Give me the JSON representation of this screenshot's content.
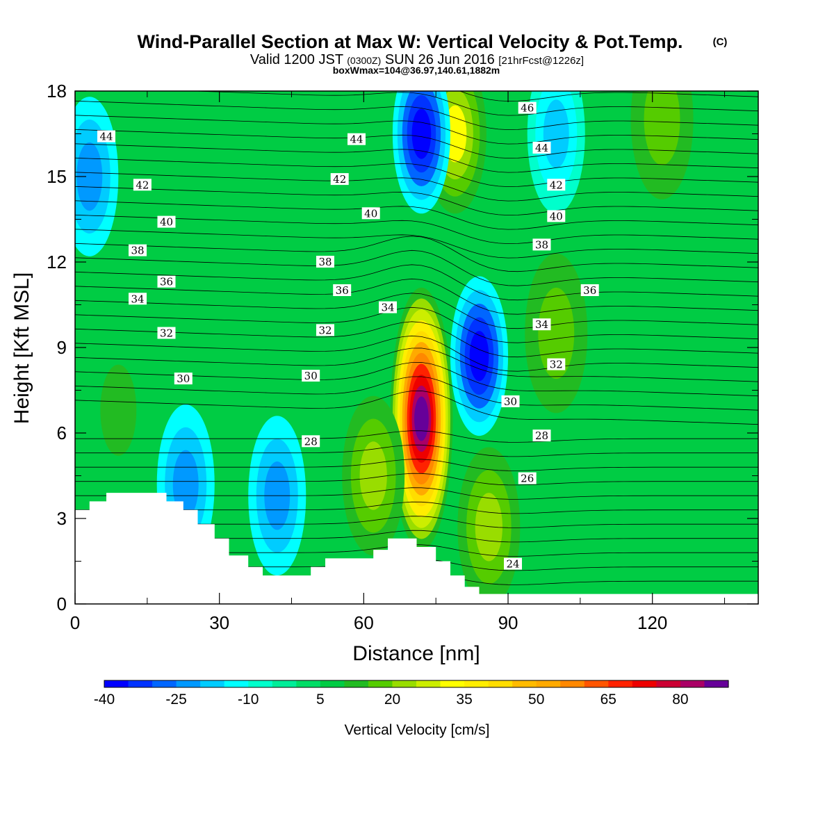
{
  "header": {
    "title_main": "Wind-Parallel Section at Max W: Vertical Velocity & Pot.Temp.",
    "title_mark": "(C)",
    "valid_a": "Valid 1200 JST",
    "valid_b": "(0300Z)",
    "valid_c": "SUN 26 Jun 2016",
    "valid_d": "[21hrFcst@1226z]",
    "box_info": "boxWmax=104@36.97,140.61,1882m"
  },
  "chart_data": {
    "type": "heatmap",
    "xlabel": "Distance [nm]",
    "ylabel": "Height [Kft MSL]",
    "xlim": [
      0,
      142
    ],
    "ylim": [
      0,
      18
    ],
    "xticks": [
      0,
      30,
      60,
      90,
      120
    ],
    "yticks": [
      0,
      3,
      6,
      9,
      12,
      15,
      18
    ],
    "colorbar": {
      "label": "Vertical Velocity [cm/s]",
      "tick_labels": [
        "-40",
        "-25",
        "-10",
        "5",
        "20",
        "35",
        "50",
        "65",
        "80"
      ],
      "colors": [
        "#0000ff",
        "#0033ff",
        "#0066ff",
        "#0099ff",
        "#00ccff",
        "#00ffff",
        "#00ffcc",
        "#00ee99",
        "#00dd66",
        "#00cc44",
        "#22bb22",
        "#55cc00",
        "#99dd00",
        "#ccee00",
        "#ffff00",
        "#ffee00",
        "#ffdd00",
        "#ffbb00",
        "#ffaa00",
        "#ff8800",
        "#ff5500",
        "#ff2200",
        "#ee0000",
        "#cc0033",
        "#aa0066",
        "#660099"
      ]
    },
    "field": "vertical velocity (cm/s)",
    "max_updraft": {
      "value": 104,
      "x": 72,
      "y": 6.0
    },
    "updrafts": [
      {
        "x": 72,
        "y": 6.5,
        "value": 90
      },
      {
        "x": 62,
        "y": 4.5,
        "value": 22
      },
      {
        "x": 86,
        "y": 2.7,
        "value": 22
      },
      {
        "x": 79,
        "y": 16.5,
        "value": 30
      },
      {
        "x": 100,
        "y": 9.5,
        "value": 18
      },
      {
        "x": 122,
        "y": 17.0,
        "value": 16
      },
      {
        "x": 9,
        "y": 6.8,
        "value": 10
      }
    ],
    "downdrafts": [
      {
        "x": 84,
        "y": 8.7,
        "value": -40
      },
      {
        "x": 72,
        "y": 16.5,
        "value": -40
      },
      {
        "x": 42,
        "y": 3.8,
        "value": -25
      },
      {
        "x": 23,
        "y": 4.2,
        "value": -22
      },
      {
        "x": 3,
        "y": 15.0,
        "value": -22
      },
      {
        "x": 100,
        "y": 16.5,
        "value": -20
      }
    ],
    "terrain": [
      [
        0,
        3.3
      ],
      [
        3,
        3.3
      ],
      [
        3,
        3.6
      ],
      [
        6.5,
        3.6
      ],
      [
        6.5,
        3.9
      ],
      [
        19,
        3.9
      ],
      [
        19,
        3.6
      ],
      [
        22.5,
        3.6
      ],
      [
        22.5,
        3.3
      ],
      [
        25.5,
        3.3
      ],
      [
        25.5,
        2.8
      ],
      [
        29,
        2.8
      ],
      [
        29,
        2.3
      ],
      [
        32,
        2.3
      ],
      [
        32,
        1.7
      ],
      [
        36,
        1.7
      ],
      [
        36,
        1.3
      ],
      [
        39,
        1.3
      ],
      [
        39,
        1.0
      ],
      [
        49,
        1.0
      ],
      [
        49,
        1.3
      ],
      [
        52,
        1.3
      ],
      [
        52,
        1.6
      ],
      [
        62,
        1.6
      ],
      [
        62,
        1.9
      ],
      [
        65,
        1.9
      ],
      [
        65,
        2.3
      ],
      [
        71,
        2.3
      ],
      [
        71,
        2.0
      ],
      [
        75,
        2.0
      ],
      [
        75,
        1.5
      ],
      [
        78,
        1.5
      ],
      [
        78,
        1.0
      ],
      [
        81,
        1.0
      ],
      [
        81,
        0.6
      ],
      [
        84,
        0.6
      ],
      [
        84,
        0.35
      ],
      [
        142,
        0.35
      ]
    ],
    "theta_contour_labels": [
      {
        "value": "44",
        "x": 6.5,
        "y": 16.4
      },
      {
        "value": "44",
        "x": 58.5,
        "y": 16.3
      },
      {
        "value": "44",
        "x": 97,
        "y": 16.0
      },
      {
        "value": "46",
        "x": 94,
        "y": 17.4
      },
      {
        "value": "42",
        "x": 14,
        "y": 14.7
      },
      {
        "value": "42",
        "x": 55,
        "y": 14.9
      },
      {
        "value": "42",
        "x": 100,
        "y": 14.7
      },
      {
        "value": "40",
        "x": 19,
        "y": 13.4
      },
      {
        "value": "40",
        "x": 61.5,
        "y": 13.7
      },
      {
        "value": "40",
        "x": 100,
        "y": 13.6
      },
      {
        "value": "38",
        "x": 13,
        "y": 12.4
      },
      {
        "value": "38",
        "x": 52,
        "y": 12.0
      },
      {
        "value": "38",
        "x": 97,
        "y": 12.6
      },
      {
        "value": "36",
        "x": 19,
        "y": 11.3
      },
      {
        "value": "36",
        "x": 55.5,
        "y": 11.0
      },
      {
        "value": "36",
        "x": 107,
        "y": 11.0
      },
      {
        "value": "34",
        "x": 13,
        "y": 10.7
      },
      {
        "value": "34",
        "x": 65,
        "y": 10.4
      },
      {
        "value": "34",
        "x": 97,
        "y": 9.8
      },
      {
        "value": "32",
        "x": 19,
        "y": 9.5
      },
      {
        "value": "32",
        "x": 52,
        "y": 9.6
      },
      {
        "value": "32",
        "x": 100,
        "y": 8.4
      },
      {
        "value": "30",
        "x": 22.5,
        "y": 7.9
      },
      {
        "value": "30",
        "x": 49,
        "y": 8.0
      },
      {
        "value": "30",
        "x": 90.5,
        "y": 7.1
      },
      {
        "value": "28",
        "x": 49,
        "y": 5.7
      },
      {
        "value": "28",
        "x": 97,
        "y": 5.9
      },
      {
        "value": "26",
        "x": 94,
        "y": 4.4
      },
      {
        "value": "24",
        "x": 91,
        "y": 1.4
      }
    ]
  }
}
